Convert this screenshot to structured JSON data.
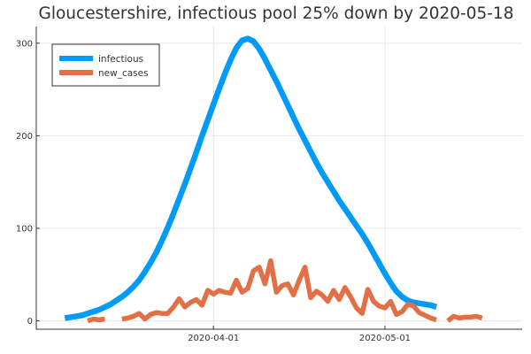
{
  "chart_data": {
    "type": "line",
    "title": "Gloucestershire, infectious pool 25% down by 2020-05-18",
    "xlabel": "",
    "ylabel": "",
    "x_start": "2020-03-06",
    "xlim": [
      "2020-03-01",
      "2020-05-25"
    ],
    "ylim": [
      -9,
      318
    ],
    "yticks": [
      0,
      100,
      200,
      300
    ],
    "xticks": [
      "2020-04-01",
      "2020-05-01"
    ],
    "grid": true,
    "legend_position": "top-left",
    "series": [
      {
        "name": "infectious",
        "color": "#009af9",
        "values": [
          3,
          4,
          5,
          6,
          8,
          10,
          12,
          15,
          18,
          22,
          26,
          31,
          37,
          44,
          53,
          63,
          74,
          87,
          101,
          116,
          132,
          148,
          165,
          182,
          200,
          217,
          234,
          251,
          267,
          282,
          295,
          303,
          305,
          302,
          294,
          283,
          271,
          259,
          246,
          233,
          220,
          207,
          195,
          183,
          171,
          160,
          150,
          140,
          130,
          121,
          112,
          103,
          94,
          84,
          73,
          62,
          51,
          41,
          32,
          26,
          22,
          20,
          19,
          18,
          17,
          15
        ]
      },
      {
        "name": "new_cases",
        "color": "#e26f46",
        "values": [
          null,
          null,
          null,
          null,
          0,
          2,
          1,
          2,
          null,
          null,
          2,
          3,
          5,
          8,
          2,
          7,
          9,
          8,
          8,
          15,
          24,
          15,
          20,
          23,
          17,
          33,
          29,
          33,
          31,
          30,
          44,
          31,
          35,
          54,
          58,
          40,
          65,
          31,
          38,
          40,
          28,
          44,
          58,
          25,
          32,
          28,
          21,
          33,
          23,
          36,
          26,
          14,
          8,
          34,
          21,
          16,
          14,
          21,
          7,
          10,
          18,
          16,
          9,
          6,
          3,
          1,
          null,
          0,
          5,
          3,
          4,
          4,
          5,
          3
        ]
      }
    ]
  }
}
